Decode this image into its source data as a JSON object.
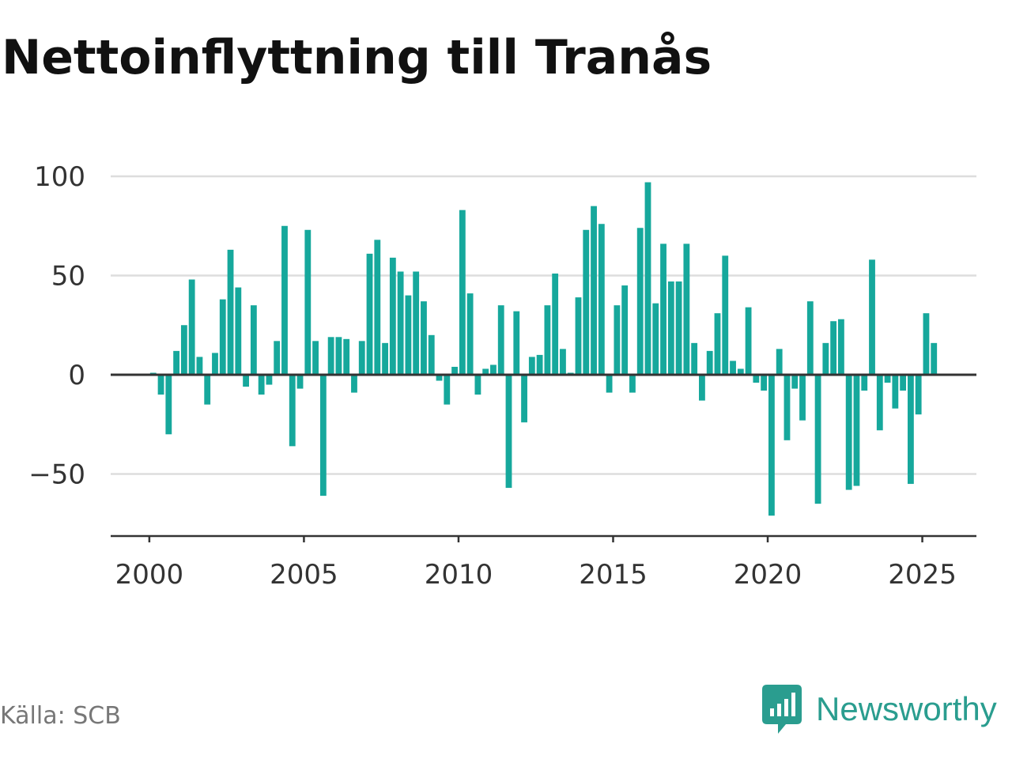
{
  "title": "Nettoinflyttning till Tranås",
  "source": "Källa: SCB",
  "brand": {
    "name": "Newsworthy",
    "icon": "newsworthy-logo-icon",
    "color": "#2a9d8f"
  },
  "colors": {
    "bar": "#16a89c",
    "grid": "#dddddd",
    "axis": "#333333",
    "text": "#333333"
  },
  "chart_data": {
    "type": "bar",
    "title": "Nettoinflyttning till Tranås",
    "xlabel": "",
    "ylabel": "",
    "grid": true,
    "ylim": [
      -82,
      100
    ],
    "xlim": [
      1998.75,
      2026.75
    ],
    "yticks": [
      100,
      50,
      0,
      -50
    ],
    "ytick_labels": [
      "100",
      "50",
      "0",
      "−50"
    ],
    "xticks": [
      2000,
      2005,
      2010,
      2015,
      2020,
      2025
    ],
    "xtick_labels": [
      "2000",
      "2005",
      "2010",
      "2015",
      "2020",
      "2025"
    ],
    "start_year": 2000,
    "periods_per_year": 4,
    "values": [
      1,
      -10,
      -30,
      12,
      25,
      48,
      9,
      -15,
      11,
      38,
      63,
      44,
      -6,
      35,
      -10,
      -5,
      17,
      75,
      -36,
      -7,
      73,
      17,
      -61,
      19,
      19,
      18,
      -9,
      17,
      61,
      68,
      16,
      59,
      52,
      40,
      52,
      37,
      20,
      -3,
      -15,
      4,
      83,
      41,
      -10,
      3,
      5,
      35,
      -57,
      32,
      -24,
      9,
      10,
      35,
      51,
      13,
      1,
      39,
      73,
      85,
      76,
      -9,
      35,
      45,
      -9,
      74,
      97,
      36,
      66,
      47,
      47,
      66,
      16,
      -13,
      12,
      31,
      60,
      7,
      3,
      34,
      -4,
      -8,
      -71,
      13,
      -33,
      -7,
      -23,
      37,
      -65,
      16,
      27,
      28,
      -58,
      -56,
      -8,
      58,
      -28,
      -4,
      -17,
      -8,
      -55,
      -20,
      31,
      16
    ]
  }
}
